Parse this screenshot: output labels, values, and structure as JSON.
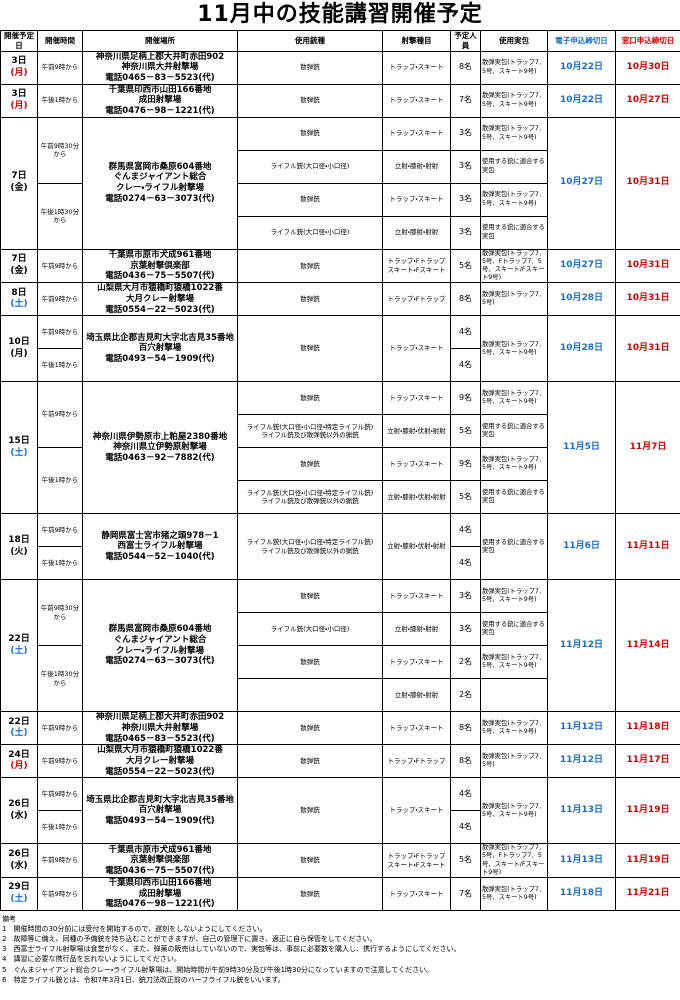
{
  "title": "11月中の技能講習開催予定",
  "header": {
    "date": "開催予定日",
    "time": "開催時間",
    "place": "開催場所",
    "gun": "使用銃種",
    "discipline": "射撃種目",
    "count": "予定人員",
    "ammo": "使用実包",
    "e_deadline": "電子申込締切日",
    "w_deadline": "窓口申込締切日"
  },
  "events": [
    {
      "date": "3日",
      "dow": "(月)",
      "dow_color": "#d40000",
      "place": [
        "神奈川県足柄上郡大井町赤田902",
        "神奈川県大井射撃場",
        "電話0465－83－5523(代)"
      ],
      "slots": [
        {
          "time": "午前9時から",
          "lines": [
            {
              "gun": "散弾銃",
              "discipline": "トラップ・スキート",
              "count": "8名",
              "ammo": "散弾実包(トラップ7．5号、スキート9号)"
            }
          ]
        }
      ],
      "e_deadline": "10月22日",
      "w_deadline": "10月30日"
    },
    {
      "date": "3日",
      "dow": "(月)",
      "dow_color": "#d40000",
      "place": [
        "千葉県印西市山田166番地",
        "成田射撃場",
        "電話0476－98－1221(代)"
      ],
      "slots": [
        {
          "time": "午後1時から",
          "lines": [
            {
              "gun": "散弾銃",
              "discipline": "トラップ・スキート",
              "count": "7名",
              "ammo": "散弾実包(トラップ7．5号、スキート9号)"
            }
          ]
        }
      ],
      "e_deadline": "10月22日",
      "w_deadline": "10月27日"
    },
    {
      "date": "7日",
      "dow": "(金)",
      "dow_color": "#000000",
      "place": [
        "群馬県富岡市桑原604番地",
        "ぐんまジャイアント総合",
        "クレー・ライフル射撃場",
        "電話0274－63－3073(代)"
      ],
      "slots": [
        {
          "time": "午前9時30分から",
          "lines": [
            {
              "gun": "散弾銃",
              "discipline": "トラップ・スキート",
              "count": "3名",
              "ammo": "散弾実包(トラップ7．5号、スキート9号)"
            },
            {
              "gun": "ライフル銃(大口径・小口径)",
              "discipline": "立射・膝射・射射",
              "count": "3名",
              "ammo": "使用する銃に適合する実包"
            }
          ]
        },
        {
          "time": "午後1時30分から",
          "lines": [
            {
              "gun": "散弾銃",
              "discipline": "トラップ・スキート",
              "count": "3名",
              "ammo": "散弾実包(トラップ7．5号、スキート9号)"
            },
            {
              "gun": "ライフル銃(大口径・小口径)",
              "discipline": "立射・膝射・射射",
              "count": "3名",
              "ammo": "使用する銃に適合する実包"
            }
          ]
        }
      ],
      "e_deadline": "10月27日",
      "w_deadline": "10月31日"
    },
    {
      "date": "7日",
      "dow": "(金)",
      "dow_color": "#000000",
      "place": [
        "千葉県市原市犬成961番地",
        "京葉射撃倶楽部",
        "電話0436－75－5507(代)"
      ],
      "slots": [
        {
          "time": "午前9時から",
          "lines": [
            {
              "gun": "散弾銃",
              "discipline": [
                "トラップ・Fトラップ",
                "スキート・Fスキート"
              ],
              "count": "5名",
              "ammo": "散弾実包(トラップ7．5号、Fトラップ7．5号、スキート/Fスキート9号)"
            }
          ]
        }
      ],
      "e_deadline": "10月27日",
      "w_deadline": "10月31日"
    },
    {
      "date": "8日",
      "dow": "(土)",
      "dow_color": "#1a6fc4",
      "place": [
        "山梨県大月市猿橋町猿橋1022番",
        "大月クレー射撃場",
        "電話0554－22－5023(代)"
      ],
      "slots": [
        {
          "time": "午前9時から",
          "lines": [
            {
              "gun": "散弾銃",
              "discipline": "トラップ・Fトラップ",
              "count": "8名",
              "ammo": "散弾実包(トラップ7．5号)"
            }
          ]
        }
      ],
      "e_deadline": "10月28日",
      "w_deadline": "10月31日"
    },
    {
      "date": "10日",
      "dow": "(月)",
      "dow_color": "#000000",
      "place": [
        "埼玉県比企郡吉見町大字北吉見35番地",
        "百穴射撃場",
        "電話0493－54－1909(代)"
      ],
      "gun": "散弾銃",
      "discipline": "トラップ・スキート",
      "ammo": "散弾実包(トラップ7．5号、スキート9号)",
      "slots": [
        {
          "time": "午前9時から",
          "count": "4名"
        },
        {
          "time": "午後1時から",
          "count": "4名"
        }
      ],
      "e_deadline": "10月28日",
      "w_deadline": "10月31日"
    },
    {
      "date": "15日",
      "dow": "(土)",
      "dow_color": "#1a6fc4",
      "place": [
        "神奈川県伊勢原市上粕屋2380番地",
        "神奈川県立伊勢原射撃場",
        "電話0463－92－7882(代)"
      ],
      "slots": [
        {
          "time": "午前9時から",
          "lines": [
            {
              "gun": "散弾銃",
              "discipline": "トラップ・スキート",
              "count": "9名",
              "ammo": "散弾実包(トラップ7．5号、スキート9号)"
            },
            {
              "gun": [
                "ライフル銃(大口径・小口径・特定ライフル銃)",
                "ライフル銃及び散弾銃以外の猟銃"
              ],
              "discipline": "立射・膝射・伏射・射射",
              "count": "5名",
              "ammo": "使用する銃に適合する実包"
            }
          ]
        },
        {
          "time": "午後1時から",
          "lines": [
            {
              "gun": "散弾銃",
              "discipline": "トラップ・スキート",
              "count": "9名",
              "ammo": "散弾実包(トラップ7．5号、スキート9号)"
            },
            {
              "gun": [
                "ライフル銃(大口径・小口径・特定ライフル銃)",
                "ライフル銃及び散弾銃以外の猟銃"
              ],
              "discipline": "立射・膝射・伏射・射射",
              "count": "5名",
              "ammo": "使用する銃に適合する実包"
            }
          ]
        }
      ],
      "e_deadline": "11月5日",
      "w_deadline": "11月7日"
    },
    {
      "date": "18日",
      "dow": "(火)",
      "dow_color": "#000000",
      "place": [
        "静岡県富士宮市猪之頭978－1",
        "西富士ライフル射撃場",
        "電話0544－52－1040(代)"
      ],
      "gun": [
        "ライフル銃(大口径・小口径・特定ライフル銃)",
        "ライフル銃及び散弾銃以外の猟銃"
      ],
      "discipline": "立射・膝射・伏射・射射",
      "ammo": "使用する銃に適合する実包",
      "slots": [
        {
          "time": "午前9時から",
          "count": "4名"
        },
        {
          "time": "午後1時から",
          "count": "4名"
        }
      ],
      "e_deadline": "11月6日",
      "w_deadline": "11月11日"
    },
    {
      "date": "22日",
      "dow": "(土)",
      "dow_color": "#1a6fc4",
      "place": [
        "群馬県富岡市桑原604番地",
        "ぐんまジャイアント総合",
        "クレー・ライフル射撃場",
        "電話0274－63－3073(代)"
      ],
      "slots": [
        {
          "time": "午前9時30分から",
          "lines": [
            {
              "gun": "散弾銃",
              "discipline": "トラップ・スキート",
              "count": "3名",
              "ammo": "散弾実包(トラップ7．5号、スキート9号)"
            },
            {
              "gun": "ライフル銃(大口径・小口径)",
              "discipline": "立射・膝射・射射",
              "count": "3名",
              "ammo": "使用する銃に適合する実包"
            }
          ]
        },
        {
          "time": "午後1時30分から",
          "lines": [
            {
              "gun": "散弾銃",
              "discipline": "トラップ・スキート",
              "count": "2名",
              "ammo": "散弾実包(トラップ7．5号、スキート9号)"
            },
            {
              "gun": null,
              "discipline": "立射・膝射・射射",
              "count": "2名",
              "ammo": null
            }
          ]
        }
      ],
      "e_deadline": "11月12日",
      "w_deadline": "11月14日"
    },
    {
      "date": "22日",
      "dow": "(土)",
      "dow_color": "#1a6fc4",
      "place": [
        "神奈川県足柄上郡大井町赤田902",
        "神奈川県大井射撃場",
        "電話0465－83－5523(代)"
      ],
      "slots": [
        {
          "time": "午前9時から",
          "lines": [
            {
              "gun": "散弾銃",
              "discipline": "トラップ・スキート",
              "count": "8名",
              "ammo": "散弾実包(トラップ7．5号、スキート9号)"
            }
          ]
        }
      ],
      "e_deadline": "11月12日",
      "w_deadline": "11月18日"
    },
    {
      "date": "24日",
      "dow": "(月)",
      "dow_color": "#d40000",
      "place": [
        "山梨県大月市猿橋町猿橋1022番",
        "大月クレー射撃場",
        "電話0554－22－5023(代)"
      ],
      "slots": [
        {
          "time": "午前9時から",
          "lines": [
            {
              "gun": "散弾銃",
              "discipline": "トラップ・Fトラップ",
              "count": "8名",
              "ammo": "散弾実包(トラップ7．5号)"
            }
          ]
        }
      ],
      "e_deadline": "11月12日",
      "w_deadline": "11月17日"
    },
    {
      "date": "26日",
      "dow": "(水)",
      "dow_color": "#000000",
      "place": [
        "埼玉県比企郡吉見町大字北吉見35番地",
        "百穴射撃場",
        "電話0493－54－1909(代)"
      ],
      "gun": "散弾銃",
      "discipline": "トラップ・スキート",
      "ammo": "散弾実包(トラップ7．5号、スキート9号)",
      "slots": [
        {
          "time": "午前9時から",
          "count": "4名"
        },
        {
          "time": "午後1時から",
          "count": "4名"
        }
      ],
      "e_deadline": "11月13日",
      "w_deadline": "11月19日"
    },
    {
      "date": "26日",
      "dow": "(水)",
      "dow_color": "#000000",
      "place": [
        "千葉県市原市犬成961番地",
        "京葉射撃倶楽部",
        "電話0436－75－5507(代)"
      ],
      "slots": [
        {
          "time": "午前9時から",
          "lines": [
            {
              "gun": "散弾銃",
              "discipline": [
                "トラップ・Fトラップ",
                "スキート・Fスキート"
              ],
              "count": "5名",
              "ammo": "散弾実包(トラップ7．5号、Fトラップ7．5号、スキート/Fスキート9号)"
            }
          ]
        }
      ],
      "e_deadline": "11月13日",
      "w_deadline": "11月19日"
    },
    {
      "date": "29日",
      "dow": "(土)",
      "dow_color": "#1a6fc4",
      "place": [
        "千葉県印西市山田166番地",
        "成田射撃場",
        "電話0476－98－1221(代)"
      ],
      "slots": [
        {
          "time": "午前9時から",
          "lines": [
            {
              "gun": "散弾銃",
              "discipline": "トラップ・スキート",
              "count": "7名",
              "ammo": "散弾実包(トラップ7．5号、スキート9号)"
            }
          ]
        }
      ],
      "e_deadline": "11月18日",
      "w_deadline": "11月21日"
    }
  ],
  "notes": {
    "title": "備考",
    "items": [
      "1　開催時間の30分前には受付を開始するので、遅刻をしないようにしてください。",
      "2　故障等に備え、同種の予備銃を持ち込むことができますが、自己の管理下に置き、適正に自ら保管をしてください。",
      "3　西富士ライフル射撃場は食堂がなく、また、弾薬の販売はしていないので、実包等は、事前に必要数を購入し、携行するようにしてください。",
      "4　講習に必要な携行品を忘れないようにしてください。",
      "5　ぐんまジャイアント総合クレー・ライフル射撃場は、開始時間が午前9時30分及び午後1時30分になっていますので注意してください。",
      "6　特定ライフル銃とは、令和7年3月1日、銃刀法改正前のハーフライフル銃をいいます。"
    ]
  }
}
